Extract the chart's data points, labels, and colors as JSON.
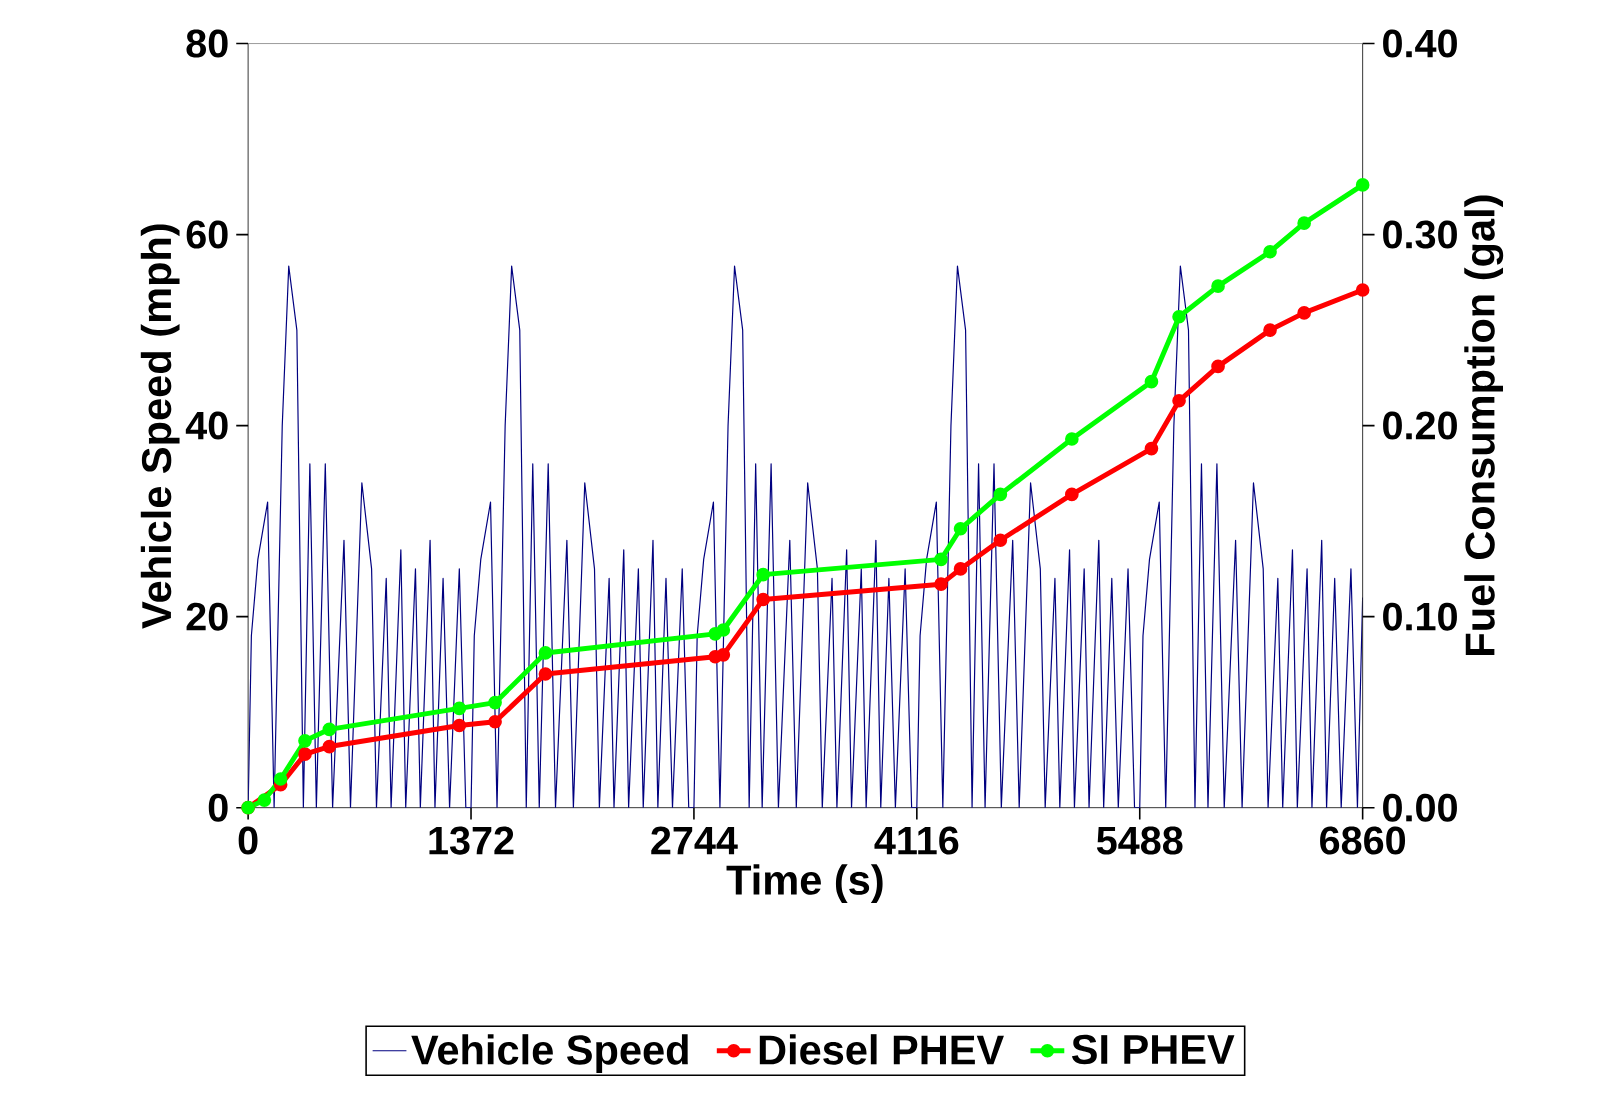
{
  "chart_data": {
    "type": "line",
    "xlabel": "Time (s)",
    "ylabel": "Vehicle Speed (mph)",
    "y2label": "Fuel Consumption (gal)",
    "xlim": [
      0,
      6860
    ],
    "xticks": [
      0,
      1372,
      2744,
      4116,
      5488,
      6860
    ],
    "ylim": [
      0,
      80
    ],
    "yticks": [
      0,
      20,
      40,
      60,
      80
    ],
    "y2lim": [
      0,
      0.4
    ],
    "y2ticks": [
      {
        "value": 0,
        "label": "0.00"
      },
      {
        "value": 0.1,
        "label": "0.10"
      },
      {
        "value": 0.2,
        "label": "0.20"
      },
      {
        "value": 0.3,
        "label": "0.30"
      },
      {
        "value": 0.4,
        "label": "0.40"
      }
    ],
    "legend": "bottom",
    "line_style": "solid",
    "series": [
      {
        "name": "Vehicle Speed",
        "color": "#000080",
        "marker": "none",
        "x": [
          0,
          20,
          60,
          120,
          160,
          210,
          250,
          300,
          340,
          380,
          420,
          475,
          520,
          590,
          630,
          700,
          760,
          790,
          850,
          880,
          940,
          970,
          1030,
          1060,
          1120,
          1150,
          1200,
          1240,
          1300,
          1340,
          1372,
          1392,
          1432,
          1492,
          1532,
          1582,
          1622,
          1672,
          1712,
          1752,
          1792,
          1847,
          1892,
          1962,
          2002,
          2072,
          2132,
          2162,
          2222,
          2252,
          2312,
          2342,
          2402,
          2432,
          2492,
          2522,
          2572,
          2612,
          2672,
          2712,
          2744,
          2764,
          2804,
          2864,
          2904,
          2954,
          2994,
          3044,
          3084,
          3124,
          3164,
          3219,
          3264,
          3334,
          3374,
          3444,
          3504,
          3534,
          3594,
          3624,
          3684,
          3714,
          3774,
          3804,
          3864,
          3894,
          3944,
          3984,
          4044,
          4084,
          4116,
          4136,
          4176,
          4236,
          4276,
          4326,
          4366,
          4416,
          4456,
          4496,
          4536,
          4591,
          4636,
          4706,
          4746,
          4816,
          4876,
          4906,
          4966,
          4996,
          5056,
          5086,
          5146,
          5176,
          5236,
          5266,
          5316,
          5356,
          5416,
          5456,
          5488,
          5508,
          5548,
          5608,
          5648,
          5698,
          5738,
          5788,
          5828,
          5868,
          5908,
          5963,
          6008,
          6078,
          6118,
          6188,
          6248,
          6278,
          6338,
          6368,
          6428,
          6458,
          6518,
          6548,
          6608,
          6638,
          6688,
          6728,
          6788,
          6828,
          6860
        ],
        "values": [
          0,
          18,
          26,
          32,
          0,
          40,
          56.7,
          50,
          0,
          36,
          0,
          36,
          0,
          28,
          0,
          34,
          25,
          0,
          24,
          0,
          27,
          0,
          25,
          0,
          28,
          0,
          24,
          0,
          25,
          0,
          0,
          18,
          26,
          32,
          0,
          40,
          56.7,
          50,
          0,
          36,
          0,
          36,
          0,
          28,
          0,
          34,
          25,
          0,
          24,
          0,
          27,
          0,
          25,
          0,
          28,
          0,
          24,
          0,
          25,
          0,
          0,
          18,
          26,
          32,
          0,
          40,
          56.7,
          50,
          0,
          36,
          0,
          36,
          0,
          28,
          0,
          34,
          25,
          0,
          24,
          0,
          27,
          0,
          25,
          0,
          28,
          0,
          24,
          0,
          25,
          0,
          0,
          18,
          26,
          32,
          0,
          40,
          56.7,
          50,
          0,
          36,
          0,
          36,
          0,
          28,
          0,
          34,
          25,
          0,
          24,
          0,
          27,
          0,
          25,
          0,
          28,
          0,
          24,
          0,
          25,
          0,
          0,
          18,
          26,
          32,
          0,
          40,
          56.7,
          50,
          0,
          36,
          0,
          36,
          0,
          28,
          0,
          34,
          25,
          0,
          24,
          0,
          27,
          0,
          25,
          0,
          28,
          0,
          24,
          0,
          25,
          0,
          22
        ]
      },
      {
        "name": "Diesel PHEV",
        "color": "#ff0000",
        "marker": "circle",
        "axis": "y2",
        "x": [
          0,
          100,
          200,
          350,
          500,
          1300,
          1520,
          1830,
          2875,
          2925,
          3170,
          4265,
          4385,
          4630,
          5070,
          5560,
          5730,
          5970,
          6290,
          6500,
          6860
        ],
        "values": [
          0,
          null,
          0.012,
          0.028,
          0.032,
          0.043,
          0.045,
          0.07,
          0.079,
          0.08,
          0.109,
          0.117,
          0.125,
          0.14,
          0.164,
          0.188,
          0.213,
          0.231,
          0.25,
          0.259,
          0.271
        ]
      },
      {
        "name": "SI PHEV",
        "color": "#00ff00",
        "marker": "circle",
        "axis": "y2",
        "x": [
          0,
          100,
          200,
          350,
          500,
          1300,
          1520,
          1830,
          2875,
          2925,
          3170,
          4265,
          4385,
          4630,
          5070,
          5560,
          5730,
          5970,
          6290,
          6500,
          6860
        ],
        "values": [
          0,
          0.004,
          0.015,
          0.035,
          0.041,
          0.052,
          0.055,
          0.081,
          0.091,
          0.093,
          0.122,
          0.13,
          0.146,
          0.164,
          0.193,
          0.223,
          0.257,
          0.273,
          0.291,
          0.306,
          0.326
        ]
      }
    ]
  }
}
